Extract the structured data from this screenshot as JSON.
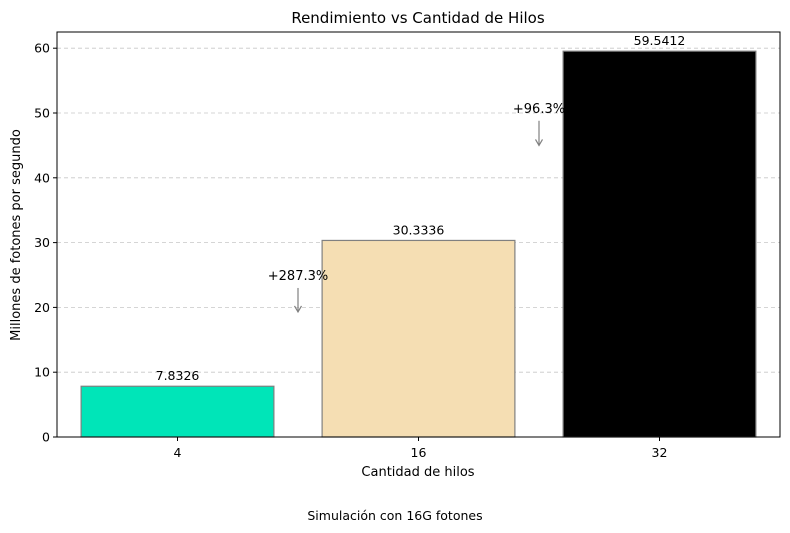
{
  "chart_data": {
    "type": "bar",
    "title": "Rendimiento vs Cantidad de Hilos",
    "xlabel": "Cantidad de hilos",
    "ylabel": "Millones de fotones por segundo",
    "caption": "Simulación con 16G fotones",
    "categories": [
      "4",
      "16",
      "32"
    ],
    "values": [
      7.8326,
      30.3336,
      59.5412
    ],
    "value_labels": [
      "7.8326",
      "30.3336",
      "59.5412"
    ],
    "bar_colors": [
      "#00e5b8",
      "#f5deb3",
      "#000000"
    ],
    "ylim": [
      0,
      62.5
    ],
    "yticks": [
      0,
      10,
      20,
      30,
      40,
      50,
      60
    ],
    "grid": "y, dashed",
    "annotations": [
      {
        "text": "+287.3%",
        "x": 0.5,
        "y": 23.0,
        "arrow_to_y": 19.3
      },
      {
        "text": "+96.3%",
        "x": 1.5,
        "y": 48.8,
        "arrow_to_y": 45.0
      }
    ]
  }
}
